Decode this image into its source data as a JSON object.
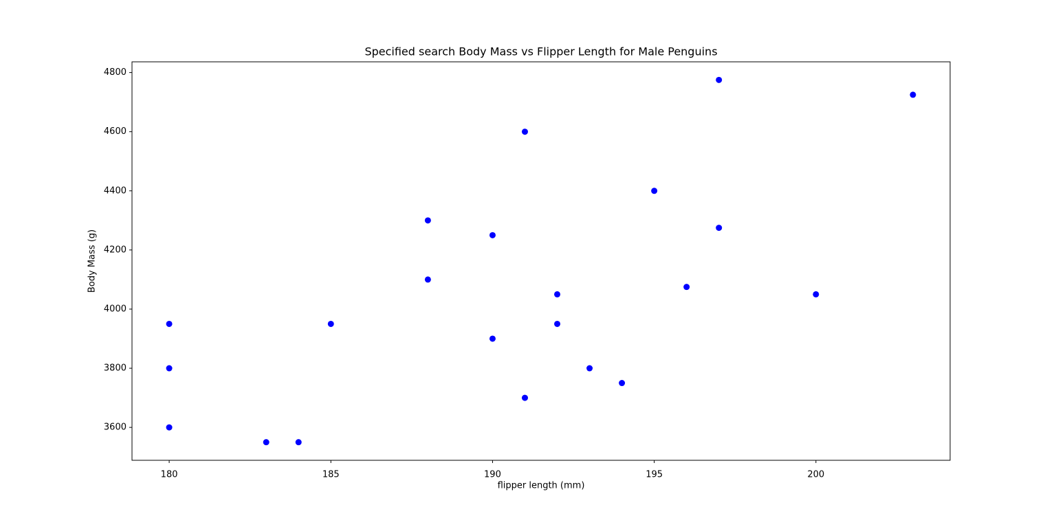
{
  "chart_data": {
    "type": "scatter",
    "title": "Specified search Body Mass vs Flipper Length for Male Penguins",
    "xlabel": "flipper length (mm)",
    "ylabel": "Body Mass (g)",
    "x": [
      180,
      180,
      180,
      183,
      184,
      185,
      188,
      188,
      190,
      190,
      191,
      191,
      192,
      192,
      193,
      194,
      195,
      196,
      197,
      197,
      200,
      203
    ],
    "values": [
      3950,
      3800,
      3600,
      3550,
      3550,
      3950,
      4300,
      4100,
      4250,
      3900,
      4600,
      3700,
      4050,
      3950,
      3800,
      3750,
      4400,
      4075,
      4775,
      4275,
      4050,
      4725
    ],
    "color": "#0000ff",
    "xlim": [
      178.85,
      204.15
    ],
    "xticks": [
      180,
      185,
      190,
      195,
      200
    ],
    "ylim": [
      3488.75,
      4836.25
    ],
    "yticks": [
      3600,
      3800,
      4000,
      4200,
      4400,
      4600,
      4800
    ],
    "grid": false
  }
}
